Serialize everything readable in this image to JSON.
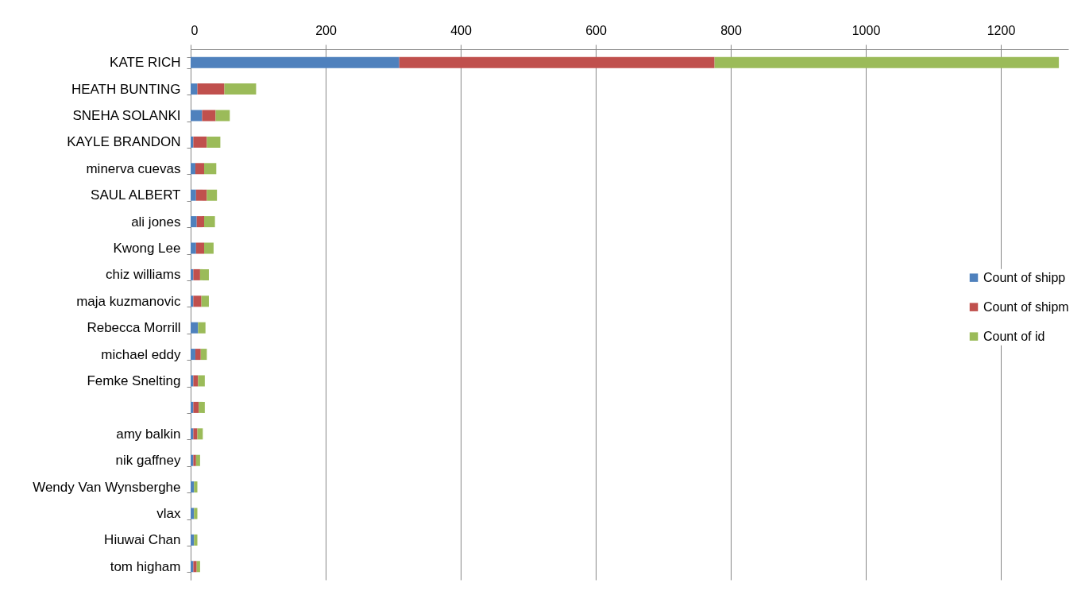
{
  "chart_data": {
    "type": "bar",
    "orientation": "horizontal",
    "stacked": true,
    "categories": [
      "KATE RICH",
      "HEATH BUNTING",
      "SNEHA SOLANKI",
      "KAYLE BRANDON",
      "minerva cuevas",
      "SAUL ALBERT",
      "ali jones",
      "Kwong Lee",
      "chiz williams",
      "maja kuzmanovic",
      "Rebecca Morrill",
      "michael eddy",
      "Femke Snelting",
      null,
      "amy balkin",
      "nik gaffney",
      "Wendy Van Wynsberghe",
      "vlax",
      "Hiuwai Chan",
      "tom higham"
    ],
    "series": [
      {
        "name": "Count of shipp",
        "color": "#4f81bd",
        "values": [
          309,
          10,
          17,
          4,
          7,
          8,
          9,
          8,
          4,
          4,
          11,
          7,
          4,
          4,
          4,
          4,
          5,
          5,
          5,
          4
        ]
      },
      {
        "name": "Count of shipm",
        "color": "#c0504d",
        "values": [
          467,
          40,
          20,
          20,
          13,
          16,
          11,
          12,
          10,
          12,
          null,
          8,
          7,
          8,
          6,
          4,
          null,
          null,
          null,
          5
        ]
      },
      {
        "name": "Count of id",
        "color": "#9bbb59",
        "values": [
          510,
          47,
          21,
          20,
          18,
          15,
          16,
          14,
          13,
          11,
          11,
          9,
          10,
          9,
          8,
          6,
          5,
          5,
          5,
          5
        ]
      }
    ],
    "xlim": [
      0,
      1300
    ],
    "xticks": [
      0,
      200,
      400,
      600,
      800,
      1000,
      1200
    ],
    "grid": "x",
    "legend": "right"
  }
}
